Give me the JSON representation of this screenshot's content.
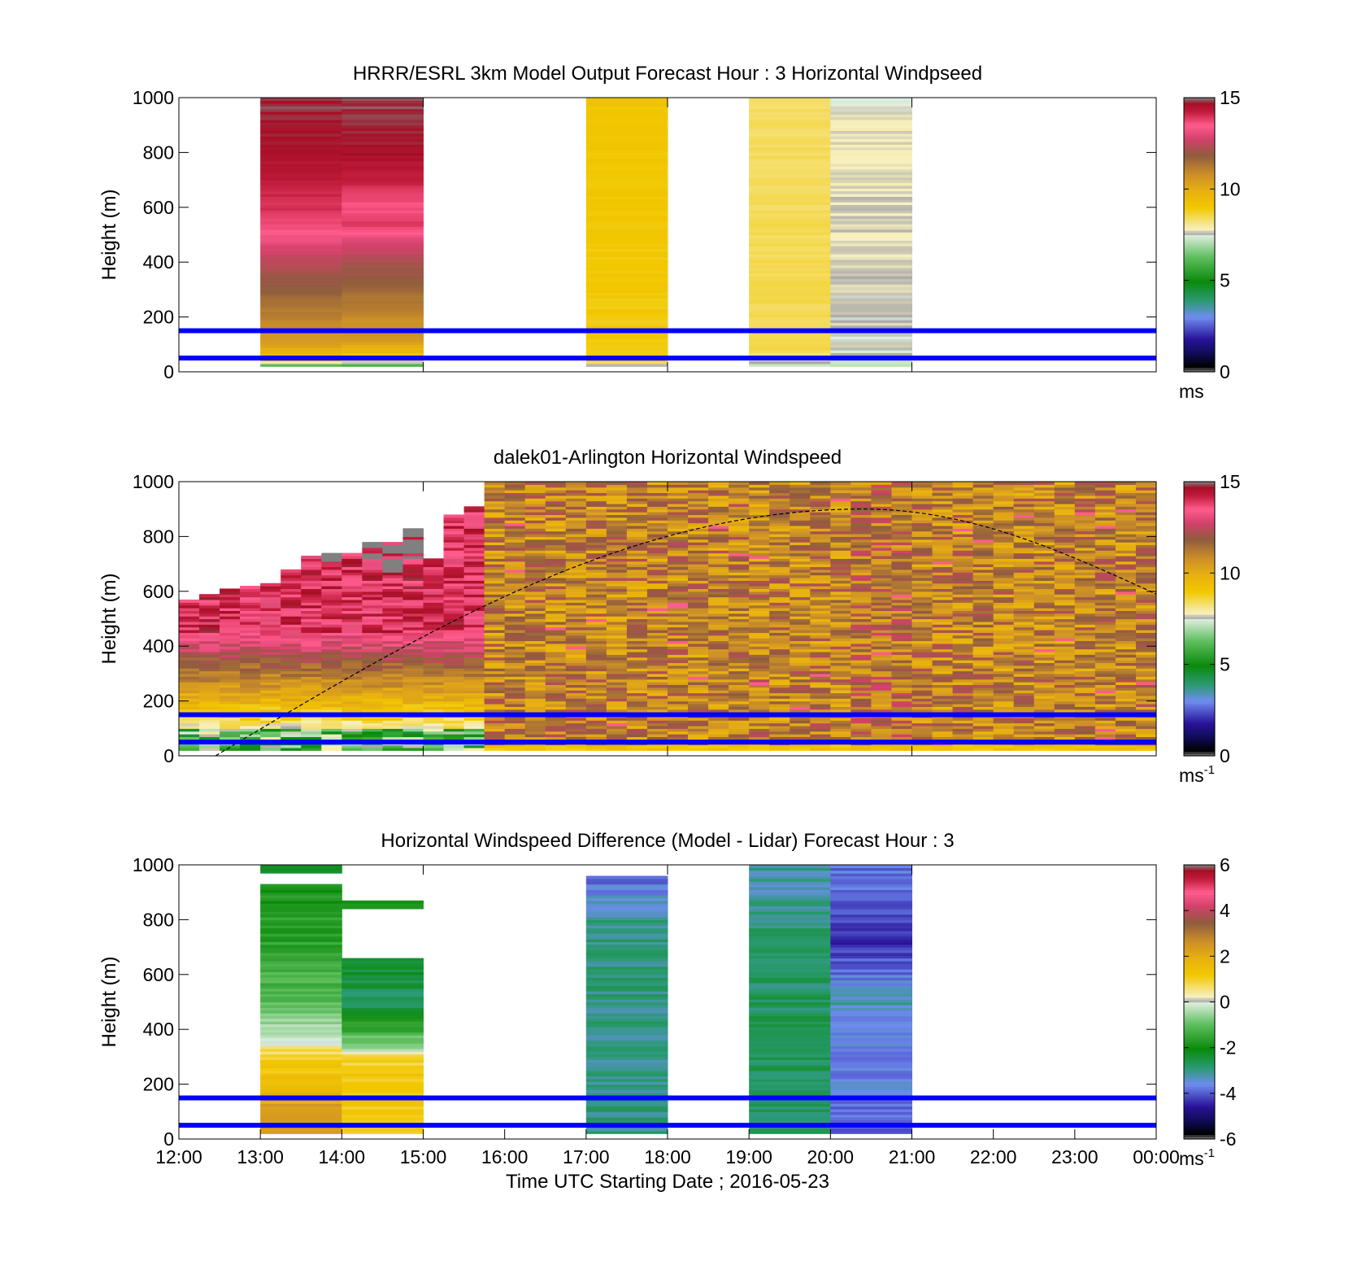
{
  "figure": {
    "background": "#ffffff",
    "reference_line_color": "#0000ff",
    "terminator_line_color": "#000000",
    "missing_color": "#808080"
  },
  "chart_data": [
    {
      "type": "heatmap",
      "id": "model",
      "title": "HRRR/ESRL 3km Model Output   Forecast Hour : 3 Horizontal Windpseed",
      "ylabel": "Height (m)",
      "xlabel": "",
      "x_ticks": [],
      "ylim": [
        0,
        1000
      ],
      "y_ticks": [
        "0",
        "200",
        "400",
        "600",
        "800",
        "1000"
      ],
      "xlim_hours": [
        12,
        24
      ],
      "x_tick_hours": [
        15,
        18,
        21
      ],
      "colorbar": {
        "range": [
          0,
          15
        ],
        "ticks": [
          "0",
          "5",
          "10",
          "15"
        ],
        "unit": "ms",
        "unit_sup": "",
        "palette": "speed"
      },
      "reference_lines_m": [
        150,
        50
      ],
      "columns": [
        {
          "start": 13,
          "end": 14,
          "profile": [
            [
              20,
              5.2
            ],
            [
              40,
              9.0
            ],
            [
              60,
              9.5
            ],
            [
              100,
              10.3
            ],
            [
              150,
              10.8
            ],
            [
              250,
              11.4
            ],
            [
              330,
              12.0
            ],
            [
              400,
              12.4
            ],
            [
              460,
              12.9
            ],
            [
              520,
              13.6
            ],
            [
              600,
              14.0
            ],
            [
              700,
              14.3
            ],
            [
              800,
              14.6
            ],
            [
              1000,
              14.8
            ]
          ]
        },
        {
          "start": 14,
          "end": 15,
          "profile": [
            [
              20,
              5.2
            ],
            [
              40,
              8.2
            ],
            [
              60,
              9.2
            ],
            [
              120,
              10.6
            ],
            [
              200,
              10.9
            ],
            [
              300,
              11.6
            ],
            [
              400,
              12.2
            ],
            [
              480,
              13.0
            ],
            [
              540,
              13.9
            ],
            [
              600,
              13.6
            ],
            [
              700,
              14.2
            ],
            [
              800,
              14.6
            ],
            [
              1000,
              14.9
            ]
          ]
        },
        {
          "start": 17,
          "end": 18,
          "profile": [
            [
              20,
              7.2
            ],
            [
              40,
              8.9
            ],
            [
              1000,
              9.1
            ]
          ]
        },
        {
          "start": 19,
          "end": 20,
          "profile": [
            [
              20,
              7.2
            ],
            [
              40,
              7.8
            ],
            [
              80,
              8.5
            ],
            [
              1000,
              8.4
            ]
          ]
        },
        {
          "start": 20,
          "end": 21,
          "profile": [
            [
              20,
              7.1
            ],
            [
              40,
              7.4
            ],
            [
              100,
              7.6
            ],
            [
              900,
              7.8
            ],
            [
              1000,
              7.5
            ]
          ]
        }
      ],
      "has_terminator": false
    },
    {
      "type": "heatmap",
      "id": "lidar",
      "title": "dalek01-Arlington  Horizontal Windspeed",
      "ylabel": "Height (m)",
      "xlabel": "",
      "x_ticks": [],
      "ylim": [
        0,
        1000
      ],
      "y_ticks": [
        "0",
        "200",
        "400",
        "600",
        "800",
        "1000"
      ],
      "xlim_hours": [
        12,
        24
      ],
      "x_tick_hours": [
        15,
        18,
        21
      ],
      "colorbar": {
        "range": [
          0,
          15
        ],
        "ticks": [
          "0",
          "5",
          "10",
          "15"
        ],
        "unit": "ms",
        "unit_sup": "-1",
        "palette": "speed"
      },
      "reference_lines_m": [
        150,
        50
      ],
      "data_end_hour": 23.85,
      "profile_interval_hours": 0.25,
      "terminator": {
        "start_hour": 12.45,
        "start_m": 0,
        "peak_hour": 20.4,
        "peak_m": 900,
        "end_hour": 24,
        "end_m": 590
      }
    },
    {
      "type": "heatmap",
      "id": "difference",
      "title": "Horizontal Windspeed Difference (Model - Lidar) Forecast Hour : 3",
      "ylabel": "Height (m)",
      "xlabel": "Time UTC  Starting Date ; 2016-05-23",
      "x_ticks": [
        "12:00",
        "13:00",
        "14:00",
        "15:00",
        "16:00",
        "17:00",
        "18:00",
        "19:00",
        "20:00",
        "21:00",
        "22:00",
        "23:00",
        "00:00"
      ],
      "ylim": [
        0,
        1000
      ],
      "y_ticks": [
        "0",
        "200",
        "400",
        "600",
        "800",
        "1000"
      ],
      "xlim_hours": [
        12,
        24
      ],
      "x_tick_hours": [
        15,
        18,
        21
      ],
      "colorbar": {
        "range": [
          -6,
          6
        ],
        "ticks": [
          "-6",
          "-4",
          "-2",
          "0",
          "2",
          "4",
          "6"
        ],
        "unit": "ms",
        "unit_sup": "-1",
        "palette": "diff"
      },
      "reference_lines_m": [
        150,
        50
      ],
      "columns": [
        {
          "start": 13,
          "end": 14,
          "profile": [
            [
              20,
              2.2
            ],
            [
              100,
              2.5
            ],
            [
              200,
              1.5
            ],
            [
              330,
              0.8
            ],
            [
              360,
              -0.2
            ],
            [
              500,
              -1.0
            ],
            [
              700,
              -1.6
            ],
            [
              830,
              -1.7
            ],
            [
              930,
              -1.9
            ]
          ],
          "extra": [
            [
              970,
              1000,
              -2.3
            ]
          ]
        },
        {
          "start": 14,
          "end": 15,
          "profile": [
            [
              20,
              1.0
            ],
            [
              200,
              1.3
            ],
            [
              300,
              0.8
            ],
            [
              340,
              -0.6
            ],
            [
              400,
              -1.4
            ],
            [
              500,
              -2.8
            ],
            [
              600,
              -2.3
            ],
            [
              660,
              -2.5
            ]
          ],
          "extra": [
            [
              840,
              870,
              -1.8
            ]
          ]
        },
        {
          "start": 17,
          "end": 18,
          "profile": [
            [
              20,
              -3.0
            ],
            [
              100,
              -2.9
            ],
            [
              300,
              -3.1
            ],
            [
              600,
              -2.9
            ],
            [
              800,
              -3.0
            ],
            [
              880,
              -3.4
            ],
            [
              960,
              -4.0
            ]
          ]
        },
        {
          "start": 19,
          "end": 20,
          "profile": [
            [
              20,
              -2.8
            ],
            [
              200,
              -2.7
            ],
            [
              400,
              -2.6
            ],
            [
              600,
              -2.8
            ],
            [
              800,
              -2.9
            ],
            [
              900,
              -3.2
            ],
            [
              1000,
              -3.1
            ]
          ]
        },
        {
          "start": 20,
          "end": 21,
          "profile": [
            [
              20,
              -4.0
            ],
            [
              80,
              -3.8
            ],
            [
              200,
              -3.6
            ],
            [
              400,
              -3.7
            ],
            [
              500,
              -3.2
            ],
            [
              700,
              -4.3
            ],
            [
              850,
              -4.1
            ],
            [
              950,
              -3.7
            ],
            [
              1000,
              -3.8
            ]
          ]
        }
      ],
      "has_terminator": false
    }
  ]
}
